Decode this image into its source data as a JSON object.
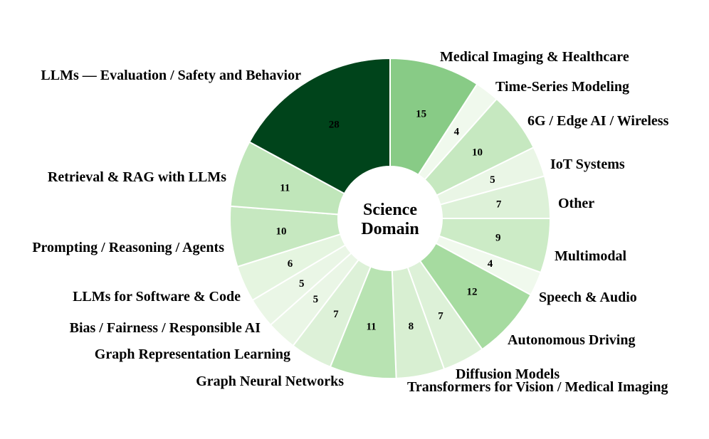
{
  "chart_data": {
    "type": "pie",
    "center_label": [
      "Science",
      "Domain"
    ],
    "colormap": "Greens",
    "slices": [
      {
        "label": "Medical Imaging & Healthcare",
        "value": 15,
        "color": "#88cb86"
      },
      {
        "label": "Time-Series Modeling",
        "value": 4,
        "color": "#f0f9ed"
      },
      {
        "label": "6G / Edge AI / Wireless",
        "value": 10,
        "color": "#c6e8c0"
      },
      {
        "label": "IoT Systems",
        "value": 5,
        "color": "#eaf6e6"
      },
      {
        "label": "Other",
        "value": 7,
        "color": "#ddf1d8"
      },
      {
        "label": "Multimodal",
        "value": 9,
        "color": "#ccebc6"
      },
      {
        "label": "Speech &  Audio",
        "value": 4,
        "color": "#f0f9ed"
      },
      {
        "label": "Autonomous Driving",
        "value": 12,
        "color": "#a6dba0"
      },
      {
        "label": "Diffusion Models",
        "value": 7,
        "color": "#ddf1d8"
      },
      {
        "label": "Transformers for Vision / Medical Imaging",
        "value": 8,
        "color": "#d8efd2"
      },
      {
        "label": "Graph Neural Networks",
        "value": 11,
        "color": "#b8e3b2"
      },
      {
        "label": "Graph Representation Learning",
        "value": 7,
        "color": "#ddf1d8"
      },
      {
        "label": "Bias / Fairness / Responsible AI",
        "value": 5,
        "color": "#eaf6e6"
      },
      {
        "label": "LLMs for Software & Code",
        "value": 5,
        "color": "#eaf6e6"
      },
      {
        "label": "Prompting / Reasoning / Agents",
        "value": 6,
        "color": "#e5f5e0"
      },
      {
        "label": "Retrieval & RAG with LLMs",
        "value": 10,
        "color": "#c6e8c0"
      },
      {
        "label": "LLMs — Evaluation / Safety and Behavior",
        "value": 11,
        "color": "#c0e6ba"
      },
      {
        "label": "",
        "value": 28,
        "color": "#00441b"
      }
    ]
  }
}
